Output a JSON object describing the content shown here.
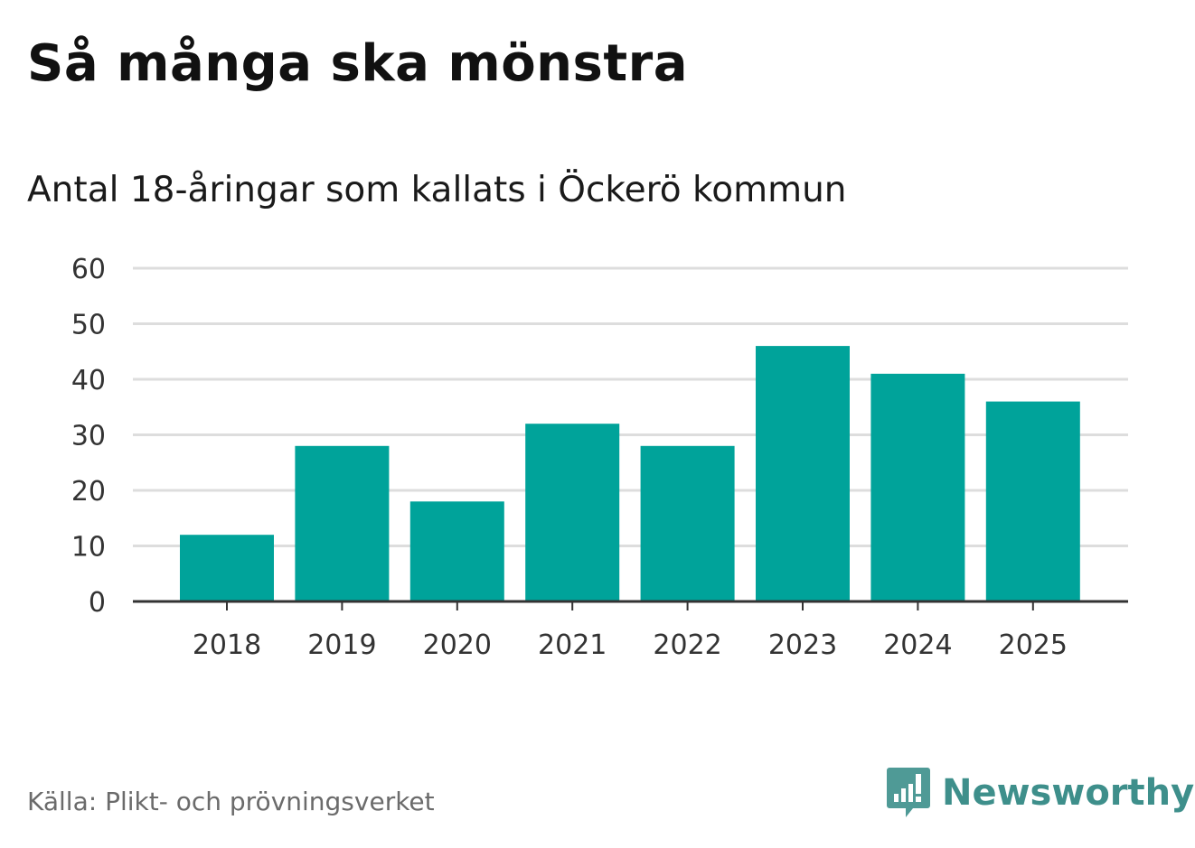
{
  "colors": {
    "bar": "#00a39a",
    "grid": "#dddddd",
    "axis": "#333333",
    "logo": "#3e8f8b"
  },
  "header": {
    "title": "Så många ska mönstra",
    "subtitle": "Antal 18-åringar som kallats i Öckerö kommun"
  },
  "chart_data": {
    "type": "bar",
    "title": "Så många ska mönstra",
    "subtitle": "Antal 18-åringar som kallats i Öckerö kommun",
    "categories": [
      "2018",
      "2019",
      "2020",
      "2021",
      "2022",
      "2023",
      "2024",
      "2025"
    ],
    "values": [
      12,
      28,
      18,
      32,
      28,
      46,
      41,
      36
    ],
    "ylim": [
      0,
      60
    ],
    "yticks": [
      "0",
      "10",
      "20",
      "30",
      "40",
      "50",
      "60"
    ],
    "xlabel": "",
    "ylabel": "",
    "grid": true,
    "legend": "none"
  },
  "footer": {
    "source": "Källa: Plikt- och prövningsverket",
    "brand": "Newsworthy",
    "brand_icon": "newsworthy-bar-icon"
  }
}
